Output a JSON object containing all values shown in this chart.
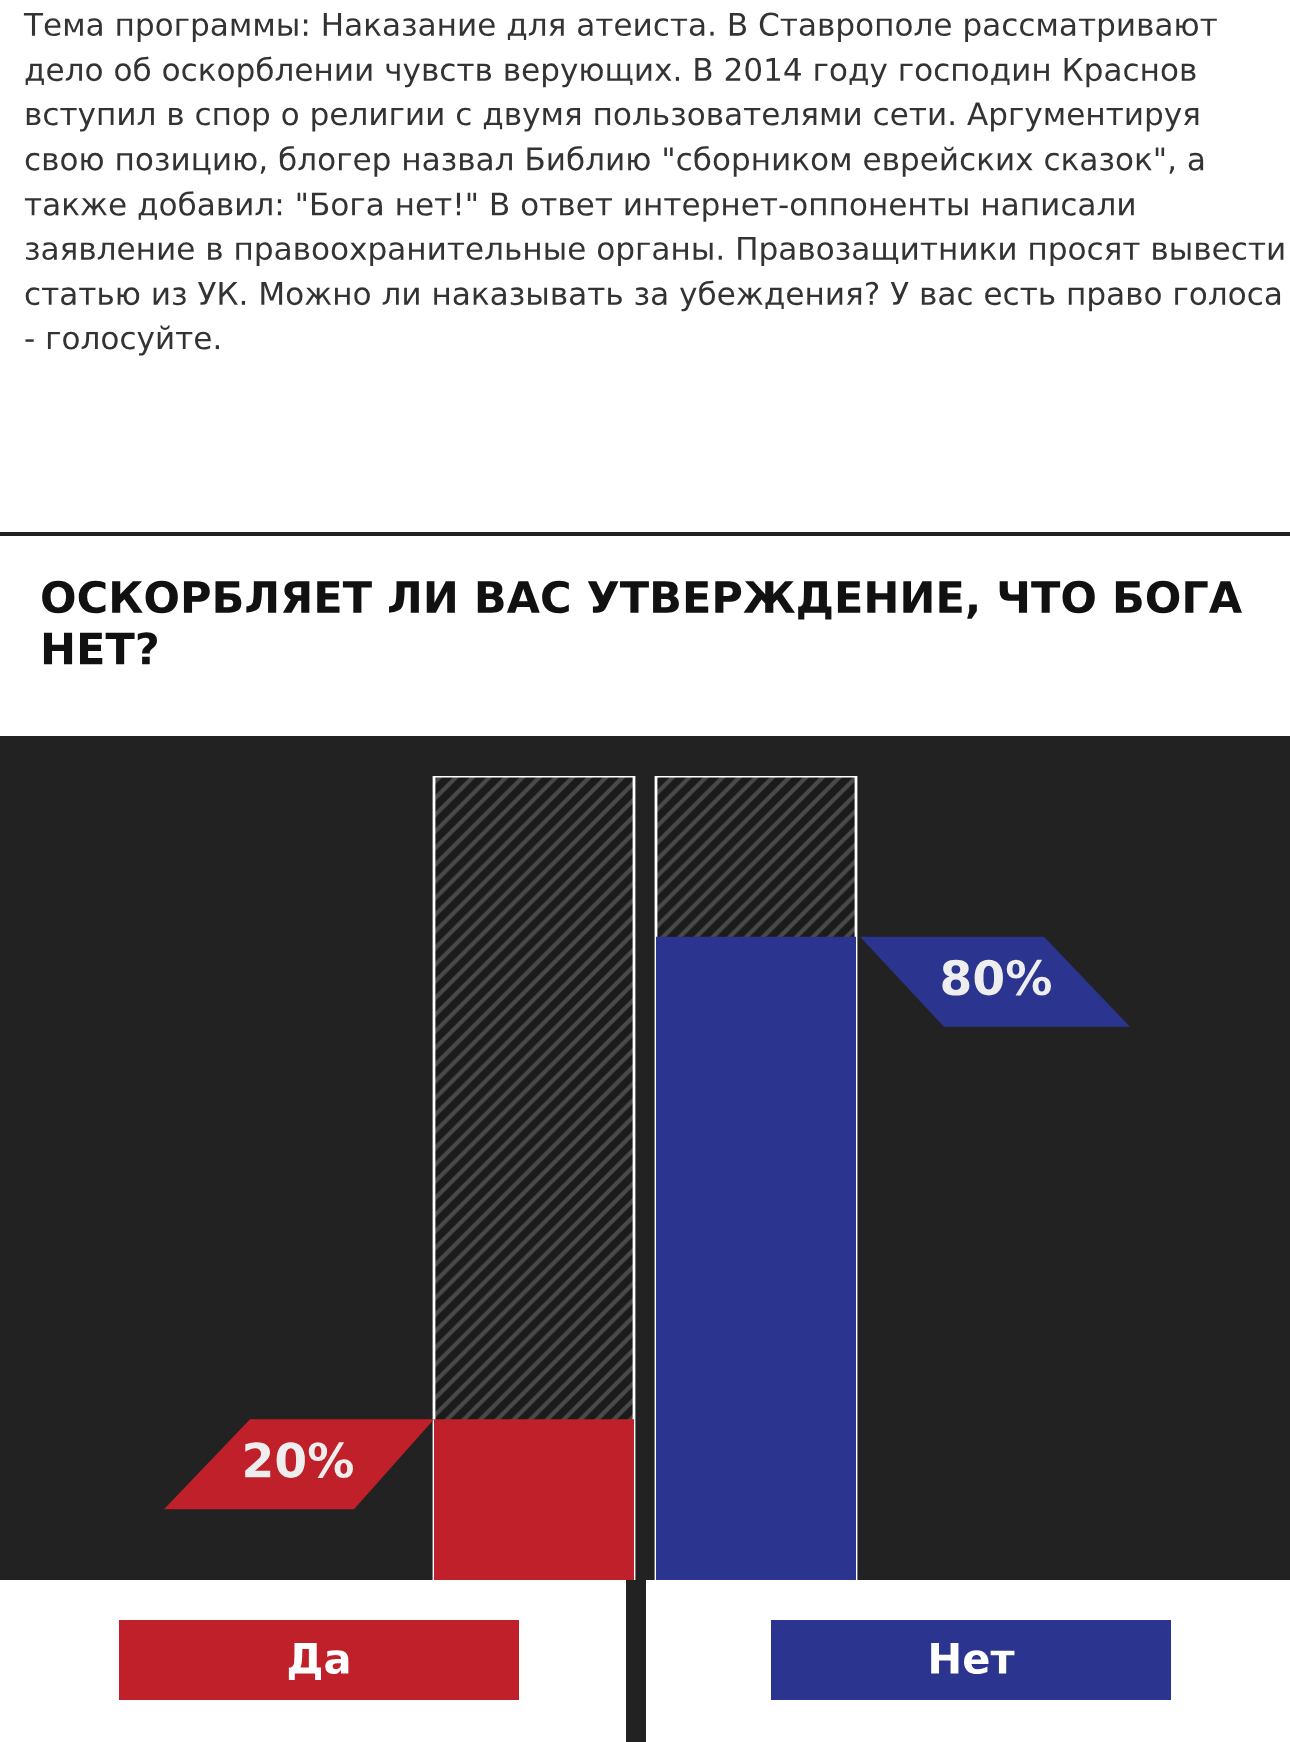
{
  "chart_data": {
    "type": "bar",
    "title": "ОСКОРБЛЯЕТ ЛИ ВАС УТВЕРЖДЕНИЕ, ЧТО БОГА НЕТ?",
    "annotations": [
      "Тема программы: Наказание для атеиста. В Ставрополе рассматривают дело об оскорблении чувств верующих. В 2014 году господин Краснов вступил в спор о религии с двумя пользователями сети. Аргументируя свою позицию, блогер назвал Библию \"сборником еврейских сказок\", а также добавил: \"Бога нет!\" В ответ интернет-оппоненты написали заявление в правоохранительные органы. Правозащитники просят вывести статью из УК. Можно ли наказывать за убеждения? У вас есть право голоса - голосуйте."
    ],
    "categories": [
      "Да",
      "Нет"
    ],
    "values": [
      20,
      80
    ],
    "value_labels": [
      "20%",
      "80%"
    ],
    "colors": [
      "#c0202a",
      "#2b3590"
    ],
    "ylim": [
      0,
      100
    ],
    "tick_labels": false
  }
}
